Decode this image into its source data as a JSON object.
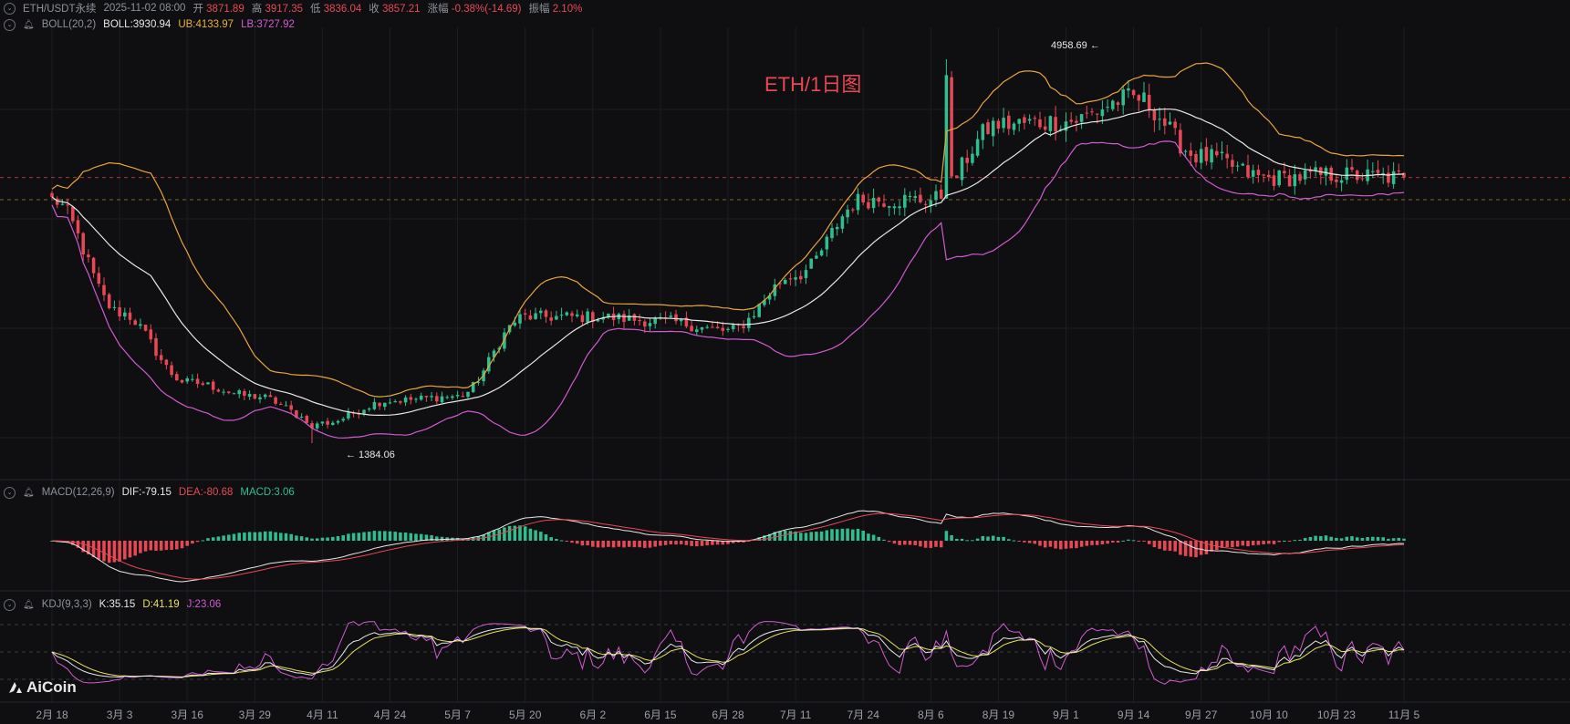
{
  "header": {
    "symbol": "ETH/USDT永续",
    "datetime": "2025-11-02 08:00",
    "open_label": "开",
    "open": "3871.89",
    "high_label": "高",
    "high": "3917.35",
    "low_label": "低",
    "low": "3836.04",
    "close_label": "收",
    "close": "3857.21",
    "change_label": "涨幅",
    "change": "-0.38%(-14.69)",
    "amp_label": "振幅",
    "amp": "2.10%"
  },
  "boll": {
    "name": "BOLL(20,2)",
    "mid": "BOLL:3930.94",
    "ub": "UB:4133.97",
    "lb": "LB:3727.92"
  },
  "macd": {
    "name": "MACD(12,26,9)",
    "dif": "DIF:-79.15",
    "dea": "DEA:-80.68",
    "macd": "MACD:3.06"
  },
  "kdj": {
    "name": "KDJ(9,3,3)",
    "k": "K:35.15",
    "d": "D:41.19",
    "j": "J:23.06"
  },
  "watermark": "ETH/1日图",
  "logo_text": "AiCoin",
  "annotations": {
    "max_label": "4958.69",
    "min_label": "← 1384.06"
  },
  "x_axis_labels": [
    "2月 18",
    "3月 3",
    "3月 16",
    "3月 29",
    "4月 11",
    "4月 24",
    "5月 7",
    "5月 20",
    "6月 2",
    "6月 15",
    "6月 28",
    "7月 11",
    "7月 24",
    "8月 6",
    "8月 19",
    "9月 1",
    "9月 14",
    "9月 27",
    "10月 10",
    "10月 23",
    "11月 5"
  ],
  "colors": {
    "up": "#2fbf8e",
    "down": "#e84855",
    "boll_mid": "#e8e8e8",
    "boll_ub": "#e8a53a",
    "boll_lb": "#d05bd0",
    "k": "#e8e8e8",
    "d": "#e8e05a",
    "j": "#d05bd0",
    "background": "#0f0f12"
  },
  "icons": {
    "collapse": "chevron-icon",
    "alert": "bell-icon"
  },
  "chart_data": {
    "type": "candlestick",
    "title": "ETH/1日图",
    "x_range": [
      "2月 18",
      "11月 5"
    ],
    "price_range": [
      1384.06,
      4958.69
    ],
    "price_anchors": [
      {
        "x": "2月 18",
        "price": 3650
      },
      {
        "x": "3月 3",
        "price": 2600
      },
      {
        "x": "3月 16",
        "price": 1950
      },
      {
        "x": "3月 29",
        "price": 1820
      },
      {
        "x": "4月 11",
        "price": 1570
      },
      {
        "x": "4月 24",
        "price": 1780
      },
      {
        "x": "5月 7",
        "price": 1820
      },
      {
        "x": "5月 20",
        "price": 2560
      },
      {
        "x": "6月 2",
        "price": 2560
      },
      {
        "x": "6月 15",
        "price": 2520
      },
      {
        "x": "6月 28",
        "price": 2430
      },
      {
        "x": "7月 11",
        "price": 2950
      },
      {
        "x": "7月 24",
        "price": 3650
      },
      {
        "x": "8月 6",
        "price": 3650
      },
      {
        "x": "8月 19",
        "price": 4350
      },
      {
        "x": "9月 1",
        "price": 4380
      },
      {
        "x": "9月 14",
        "price": 4600
      },
      {
        "x": "9月 27",
        "price": 4050
      },
      {
        "x": "10月 10",
        "price": 3850
      },
      {
        "x": "10月 23",
        "price": 3880
      },
      {
        "x": "11月 5",
        "price": 3857.21
      }
    ],
    "max": {
      "value": 4958.69,
      "x": "8月 22"
    },
    "min": {
      "value": 1384.06,
      "x": "4月 7"
    },
    "indicators": [
      "BOLL(20,2)",
      "MACD(12,26,9)",
      "KDJ(9,3,3)"
    ]
  }
}
